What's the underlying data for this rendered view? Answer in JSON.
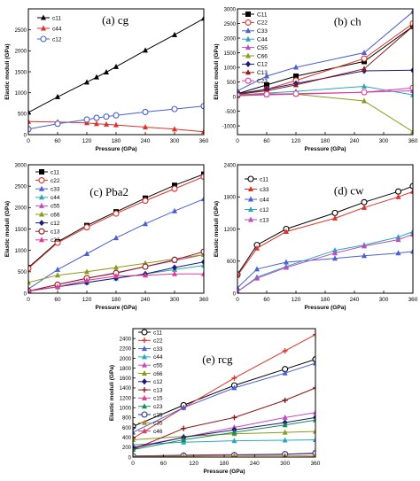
{
  "chart_data": [
    {
      "type": "line",
      "panel_label": "(a) cg",
      "xlabel": "Pressure (GPa)",
      "ylabel": "Elastic moduli (GPa)",
      "xlim": [
        0,
        360
      ],
      "ylim": [
        0,
        3000
      ],
      "xticks": [
        0,
        60,
        120,
        180,
        240,
        300,
        360
      ],
      "yticks": [
        0,
        500,
        1000,
        1500,
        2000,
        2500
      ],
      "legend_position": "top-left",
      "series": [
        {
          "name": "c11",
          "color": "#000000",
          "marker": "triangle",
          "x": [
            0,
            60,
            120,
            140,
            160,
            180,
            240,
            300,
            360
          ],
          "y": [
            530,
            900,
            1250,
            1370,
            1490,
            1620,
            2010,
            2380,
            2770
          ]
        },
        {
          "name": "c44",
          "color": "#e0302a",
          "marker": "triangle",
          "x": [
            0,
            60,
            120,
            140,
            160,
            180,
            240,
            300,
            360
          ],
          "y": [
            310,
            300,
            280,
            260,
            245,
            230,
            180,
            130,
            70
          ]
        },
        {
          "name": "c12",
          "color": "#4a5fd0",
          "marker": "circle",
          "x": [
            0,
            60,
            120,
            140,
            160,
            180,
            240,
            300,
            360
          ],
          "y": [
            130,
            260,
            360,
            400,
            430,
            460,
            540,
            610,
            680
          ]
        }
      ]
    },
    {
      "type": "line",
      "panel_label": "(b) ch",
      "xlabel": "Pressure (GPa)",
      "ylabel": "Elastic moduli (GPa)",
      "xlim": [
        0,
        360
      ],
      "ylim": [
        -1300,
        3000
      ],
      "xticks": [
        0,
        60,
        120,
        180,
        240,
        300,
        360
      ],
      "yticks": [
        -1000,
        -500,
        0,
        500,
        1000,
        1500,
        2000,
        2500,
        3000
      ],
      "legend_position": "top-left",
      "series": [
        {
          "name": "C11",
          "color": "#000000",
          "marker": "square",
          "x": [
            0,
            60,
            120,
            260,
            360
          ],
          "y": [
            100,
            400,
            700,
            1200,
            2400
          ]
        },
        {
          "name": "C22",
          "color": "#e0302a",
          "marker": "circle",
          "x": [
            0,
            60,
            120,
            260,
            360
          ],
          "y": [
            50,
            250,
            550,
            1300,
            2500
          ]
        },
        {
          "name": "C33",
          "color": "#4a5fd0",
          "marker": "triangle",
          "x": [
            0,
            60,
            120,
            260,
            360
          ],
          "y": [
            200,
            700,
            1000,
            1500,
            2900
          ]
        },
        {
          "name": "C44",
          "color": "#2aa7b8",
          "marker": "triangle",
          "x": [
            0,
            60,
            120,
            260,
            360
          ],
          "y": [
            60,
            120,
            180,
            350,
            60
          ]
        },
        {
          "name": "C55",
          "color": "#c04bbd",
          "marker": "triangle",
          "x": [
            0,
            60,
            120,
            260,
            360
          ],
          "y": [
            30,
            60,
            80,
            150,
            200
          ]
        },
        {
          "name": "C66",
          "color": "#8a9a1a",
          "marker": "triangle",
          "x": [
            0,
            60,
            120,
            260,
            360
          ],
          "y": [
            50,
            100,
            80,
            -150,
            -1200
          ]
        },
        {
          "name": "C12",
          "color": "#1a1a7a",
          "marker": "diamond",
          "x": [
            0,
            60,
            120,
            260,
            360
          ],
          "y": [
            100,
            250,
            450,
            880,
            900
          ]
        },
        {
          "name": "C13",
          "color": "#8a1a1a",
          "marker": "triangle",
          "x": [
            0,
            60,
            120,
            260,
            360
          ],
          "y": [
            80,
            200,
            400,
            950,
            2400
          ]
        },
        {
          "name": "C23",
          "color": "#e03a9a",
          "marker": "circle",
          "x": [
            0,
            60,
            120,
            260,
            360
          ],
          "y": [
            40,
            80,
            100,
            150,
            300
          ]
        }
      ]
    },
    {
      "type": "line",
      "panel_label": "(c) Pba2",
      "xlabel": "Pressure (GPa)",
      "ylabel": "Elastic moduli (GPa)",
      "xlim": [
        0,
        360
      ],
      "ylim": [
        0,
        3000
      ],
      "xticks": [
        0,
        60,
        120,
        180,
        240,
        300,
        360
      ],
      "yticks": [
        0,
        500,
        1000,
        1500,
        2000,
        2500,
        3000
      ],
      "legend_position": "top-left",
      "series": [
        {
          "name": "c11",
          "color": "#000000",
          "marker": "square",
          "x": [
            0,
            60,
            120,
            180,
            240,
            300,
            360
          ],
          "y": [
            600,
            1200,
            1580,
            1900,
            2220,
            2520,
            2780
          ]
        },
        {
          "name": "c22",
          "color": "#e0302a",
          "marker": "circle",
          "x": [
            0,
            60,
            120,
            180,
            240,
            300,
            360
          ],
          "y": [
            580,
            1180,
            1540,
            1860,
            2160,
            2440,
            2720
          ]
        },
        {
          "name": "c33",
          "color": "#4a5fd0",
          "marker": "triangle",
          "x": [
            0,
            60,
            120,
            180,
            240,
            300,
            360
          ],
          "y": [
            100,
            550,
            920,
            1290,
            1620,
            1920,
            2200
          ]
        },
        {
          "name": "c44",
          "color": "#2aa7b8",
          "marker": "triangle",
          "x": [
            0,
            60,
            120,
            180,
            240,
            300,
            360
          ],
          "y": [
            50,
            150,
            250,
            350,
            450,
            550,
            650
          ]
        },
        {
          "name": "c55",
          "color": "#c04bbd",
          "marker": "triangle",
          "x": [
            0,
            60,
            120,
            180,
            240,
            300,
            360
          ],
          "y": [
            50,
            200,
            350,
            480,
            620,
            760,
            900
          ]
        },
        {
          "name": "c66",
          "color": "#8a9a1a",
          "marker": "triangle",
          "x": [
            0,
            60,
            120,
            180,
            240,
            300,
            360
          ],
          "y": [
            250,
            420,
            500,
            600,
            700,
            800,
            900
          ]
        },
        {
          "name": "c12",
          "color": "#1a1a7a",
          "marker": "diamond",
          "x": [
            0,
            60,
            120,
            180,
            240,
            300,
            360
          ],
          "y": [
            50,
            150,
            250,
            350,
            450,
            600,
            730
          ]
        },
        {
          "name": "c13",
          "color": "#8a1a1a",
          "marker": "circle",
          "x": [
            0,
            60,
            120,
            180,
            240,
            300,
            360
          ],
          "y": [
            50,
            200,
            350,
            470,
            620,
            780,
            970
          ]
        },
        {
          "name": "c23",
          "color": "#e03a9a",
          "marker": "triangle",
          "x": [
            0,
            60,
            120,
            180,
            240,
            300,
            360
          ],
          "y": [
            50,
            150,
            300,
            400,
            420,
            450,
            450
          ]
        }
      ]
    },
    {
      "type": "line",
      "panel_label": "(d) cw",
      "xlabel": "Pressure (GPa)",
      "ylabel": "Elastic moduli (GPa)",
      "xlim": [
        0,
        360
      ],
      "ylim": [
        0,
        2400
      ],
      "xticks": [
        0,
        60,
        120,
        180,
        240,
        300,
        360
      ],
      "yticks": [
        0,
        600,
        1200,
        1800,
        2400
      ],
      "legend_position": "top-left",
      "series": [
        {
          "name": "c11",
          "color": "#000000",
          "marker": "circle",
          "x": [
            0,
            40,
            100,
            200,
            260,
            330,
            360
          ],
          "y": [
            350,
            900,
            1200,
            1500,
            1700,
            1900,
            2000
          ]
        },
        {
          "name": "c33",
          "color": "#e0302a",
          "marker": "triangle",
          "x": [
            0,
            40,
            100,
            200,
            260,
            330,
            360
          ],
          "y": [
            330,
            840,
            1150,
            1400,
            1600,
            1800,
            1900
          ]
        },
        {
          "name": "c44",
          "color": "#4a5fd0",
          "marker": "triangle",
          "x": [
            0,
            40,
            100,
            200,
            260,
            330,
            360
          ],
          "y": [
            100,
            450,
            580,
            650,
            700,
            750,
            780
          ]
        },
        {
          "name": "c12",
          "color": "#2aa7b8",
          "marker": "triangle",
          "x": [
            0,
            40,
            100,
            200,
            260,
            330,
            360
          ],
          "y": [
            30,
            300,
            500,
            800,
            900,
            1050,
            1150
          ]
        },
        {
          "name": "c13",
          "color": "#c04bbd",
          "marker": "triangle",
          "x": [
            0,
            40,
            100,
            200,
            260,
            330,
            360
          ],
          "y": [
            30,
            280,
            480,
            750,
            880,
            1000,
            1100
          ]
        }
      ]
    },
    {
      "type": "line",
      "panel_label": "(e) rcg",
      "xlabel": "Pressure (GPa)",
      "ylabel": "Elastic moduli (GPa)",
      "xlim": [
        0,
        360
      ],
      "ylim": [
        0,
        2600
      ],
      "xticks": [
        0,
        60,
        120,
        180,
        240,
        300,
        360
      ],
      "yticks": [
        0,
        200,
        400,
        600,
        800,
        1000,
        1200,
        1400,
        1600,
        1800,
        2000,
        2200,
        2400
      ],
      "legend_position": "top-left",
      "series": [
        {
          "name": "c11",
          "color": "#000000",
          "marker": "circle",
          "x": [
            0,
            100,
            200,
            300,
            360
          ],
          "y": [
            620,
            1050,
            1450,
            1780,
            1980
          ]
        },
        {
          "name": "c22",
          "color": "#e0302a",
          "marker": "plus",
          "x": [
            0,
            100,
            200,
            300,
            360
          ],
          "y": [
            380,
            1000,
            1600,
            2150,
            2480
          ]
        },
        {
          "name": "c33",
          "color": "#4a5fd0",
          "marker": "triangle",
          "x": [
            0,
            100,
            200,
            300,
            360
          ],
          "y": [
            500,
            1000,
            1400,
            1700,
            1900
          ]
        },
        {
          "name": "c44",
          "color": "#2aa7b8",
          "marker": "triangle",
          "x": [
            0,
            100,
            200,
            300,
            360
          ],
          "y": [
            250,
            300,
            330,
            340,
            350
          ]
        },
        {
          "name": "c55",
          "color": "#c04bbd",
          "marker": "triangle",
          "x": [
            0,
            100,
            200,
            300,
            360
          ],
          "y": [
            200,
            400,
            600,
            800,
            900
          ]
        },
        {
          "name": "c66",
          "color": "#8a9a1a",
          "marker": "triangle",
          "x": [
            0,
            100,
            200,
            300,
            360
          ],
          "y": [
            350,
            420,
            470,
            500,
            520
          ]
        },
        {
          "name": "c12",
          "color": "#1a1a7a",
          "marker": "diamond",
          "x": [
            0,
            100,
            200,
            300,
            360
          ],
          "y": [
            180,
            400,
            550,
            700,
            800
          ]
        },
        {
          "name": "c13",
          "color": "#8a1a1a",
          "marker": "plus",
          "x": [
            0,
            100,
            200,
            300,
            360
          ],
          "y": [
            150,
            580,
            800,
            1150,
            1400
          ]
        },
        {
          "name": "c15",
          "color": "#e03a9a",
          "marker": "triangle",
          "x": [
            0,
            100,
            200,
            300,
            360
          ],
          "y": [
            20,
            40,
            50,
            60,
            70
          ]
        },
        {
          "name": "c23",
          "color": "#1a8a5a",
          "marker": "triangle",
          "x": [
            0,
            100,
            200,
            300,
            360
          ],
          "y": [
            150,
            350,
            500,
            650,
            750
          ]
        },
        {
          "name": "c25",
          "color": "#2a2a8a",
          "marker": "circle",
          "x": [
            0,
            100,
            200,
            300,
            360
          ],
          "y": [
            20,
            30,
            40,
            60,
            80
          ]
        },
        {
          "name": "c35",
          "color": "#b0902a",
          "marker": "triangle",
          "x": [
            0,
            100,
            200,
            300,
            360
          ],
          "y": [
            10,
            20,
            30,
            30,
            20
          ]
        },
        {
          "name": "c46",
          "color": "#d04070",
          "marker": "triangle",
          "x": [
            0,
            100,
            200,
            300,
            360
          ],
          "y": [
            -10,
            -30,
            -60,
            -90,
            -110
          ]
        }
      ]
    }
  ]
}
